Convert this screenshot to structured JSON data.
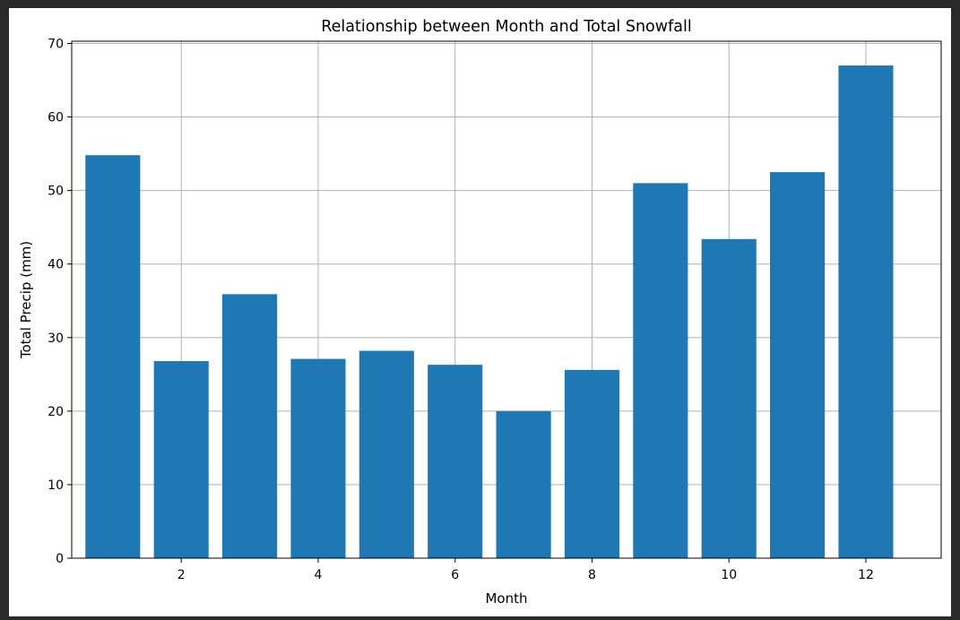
{
  "chart_data": {
    "type": "bar",
    "title": "Relationship between Month and Total Snowfall",
    "xlabel": "Month",
    "ylabel": "Total Precip (mm)",
    "x": [
      1,
      2,
      3,
      4,
      5,
      6,
      7,
      8,
      9,
      10,
      11,
      12
    ],
    "values": [
      54.8,
      26.8,
      35.9,
      27.1,
      28.2,
      26.3,
      20.0,
      25.6,
      51.0,
      43.4,
      52.5,
      67.0
    ],
    "xlim": [
      0.4,
      13.1
    ],
    "ylim": [
      0,
      70.3
    ],
    "xticks": [
      2,
      4,
      6,
      8,
      10,
      12
    ],
    "yticks": [
      0,
      10,
      20,
      30,
      40,
      50,
      60,
      70
    ],
    "bar_width": 0.8,
    "bar_color": "#1f77b4",
    "grid": true,
    "legend": "none"
  }
}
